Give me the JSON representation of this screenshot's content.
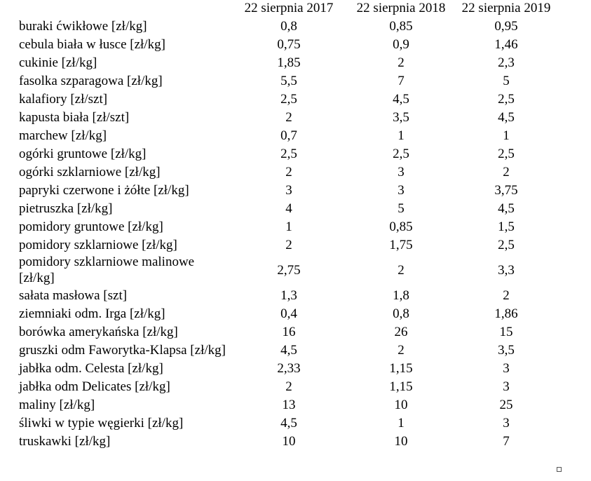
{
  "table": {
    "header": [
      "22 sierpnia 2017",
      "22 sierpnia 2018",
      "22 sierpnia 2019"
    ],
    "rows": [
      [
        "buraki ćwikłowe [zł/kg]",
        "0,8",
        "0,85",
        "0,95"
      ],
      [
        "cebula biała w łusce [zł/kg]",
        "0,75",
        "0,9",
        "1,46"
      ],
      [
        "cukinie [zł/kg]",
        "1,85",
        "2",
        "2,3"
      ],
      [
        "fasolka szparagowa [zł/kg]",
        "5,5",
        "7",
        "5"
      ],
      [
        "kalafiory [zł/szt]",
        "2,5",
        "4,5",
        "2,5"
      ],
      [
        "kapusta biała [zł/szt]",
        "2",
        "3,5",
        "4,5"
      ],
      [
        "marchew [zł/kg]",
        "0,7",
        "1",
        "1"
      ],
      [
        "ogórki gruntowe [zł/kg]",
        "2,5",
        "2,5",
        "2,5"
      ],
      [
        "ogórki szklarniowe [zł/kg]",
        "2",
        "3",
        "2"
      ],
      [
        "papryki czerwone i żółte [zł/kg]",
        "3",
        "3",
        "3,75"
      ],
      [
        "pietruszka [zł/kg]",
        "4",
        "5",
        "4,5"
      ],
      [
        "pomidory gruntowe [zł/kg]",
        "1",
        "0,85",
        "1,5"
      ],
      [
        "pomidory szklarniowe [zł/kg]",
        "2",
        "1,75",
        "2,5"
      ],
      [
        "pomidory szklarniowe malinowe [zł/kg]",
        "2,75",
        "2",
        "3,3"
      ],
      [
        "sałata masłowa [szt]",
        "1,3",
        "1,8",
        "2"
      ],
      [
        "ziemniaki odm. Irga [zł/kg]",
        "0,4",
        "0,8",
        "1,86"
      ],
      [
        "borówka amerykańska [zł/kg]",
        "16",
        "26",
        "15"
      ],
      [
        "gruszki odm Faworytka-Klapsa [zł/kg]",
        "4,5",
        "2",
        "3,5"
      ],
      [
        "jabłka odm. Celesta [zł/kg]",
        "2,33",
        "1,15",
        "3"
      ],
      [
        "jabłka odm Delicates [zł/kg]",
        "2",
        "1,15",
        "3"
      ],
      [
        "maliny [zł/kg]",
        "13",
        "10",
        "25"
      ],
      [
        "śliwki w typie węgierki [zł/kg]",
        "4,5",
        "1",
        "3"
      ],
      [
        "truskawki [zł/kg]",
        "10",
        "10",
        "7"
      ]
    ]
  }
}
